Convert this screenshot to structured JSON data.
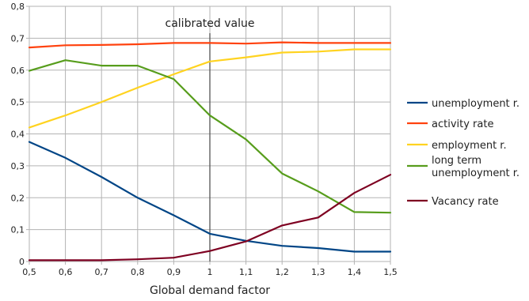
{
  "chart_data": {
    "type": "line",
    "title": "",
    "xlabel": "Global demand factor",
    "ylabel": "",
    "x": [
      0.5,
      0.6,
      0.7,
      0.8,
      0.9,
      1.0,
      1.1,
      1.2,
      1.3,
      1.4,
      1.5
    ],
    "x_tick_labels": [
      "0,5",
      "0,6",
      "0,7",
      "0,8",
      "0,9",
      "1",
      "1,1",
      "1,2",
      "1,3",
      "1,4",
      "1,5"
    ],
    "xlim": [
      0.5,
      1.5
    ],
    "ylim": [
      0,
      0.8
    ],
    "y_ticks": [
      0,
      0.1,
      0.2,
      0.3,
      0.4,
      0.5,
      0.6,
      0.7,
      0.8
    ],
    "y_tick_labels": [
      "0",
      "0,1",
      "0,2",
      "0,3",
      "0,4",
      "0,5",
      "0,6",
      "0,7",
      "0,8"
    ],
    "grid": true,
    "legend_position": "right",
    "annotations": [
      {
        "text": "calibrated value",
        "x": 1.0,
        "type": "vertical-line"
      }
    ],
    "series": [
      {
        "name": "unemployment r.",
        "color": "#004586",
        "values": [
          0.375,
          0.325,
          0.265,
          0.2,
          0.145,
          0.087,
          0.065,
          0.049,
          0.042,
          0.031,
          0.031
        ]
      },
      {
        "name": "activity rate",
        "color": "#ff420e",
        "values": [
          0.671,
          0.678,
          0.679,
          0.681,
          0.685,
          0.685,
          0.683,
          0.687,
          0.685,
          0.685,
          0.685
        ]
      },
      {
        "name": "employment r.",
        "color": "#ffd320",
        "values": [
          0.42,
          0.458,
          0.5,
          0.545,
          0.587,
          0.627,
          0.64,
          0.655,
          0.658,
          0.665,
          0.665
        ]
      },
      {
        "name": "long term\nunemployment r.",
        "color": "#579d1c",
        "values": [
          0.598,
          0.631,
          0.614,
          0.614,
          0.572,
          0.458,
          0.383,
          0.276,
          0.22,
          0.155,
          0.153
        ]
      },
      {
        "name": "Vacancy rate",
        "color": "#7e0021",
        "values": [
          0.004,
          0.004,
          0.004,
          0.007,
          0.012,
          0.033,
          0.063,
          0.113,
          0.138,
          0.215,
          0.272
        ]
      }
    ]
  }
}
